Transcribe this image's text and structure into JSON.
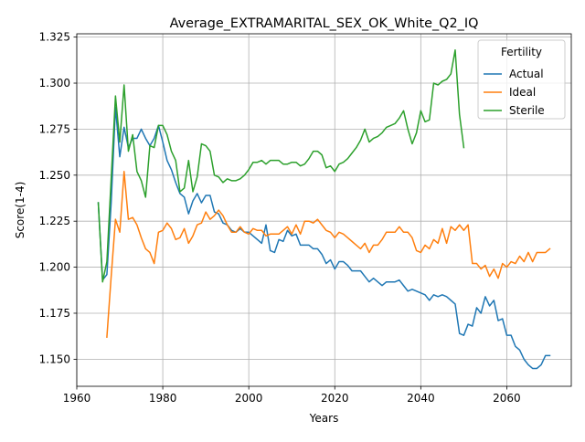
{
  "chart_data": {
    "type": "line",
    "title": "Average_EXTRAMARITAL_SEX_OK_White_Q2_IQ",
    "xlabel": "Years",
    "ylabel": "Score(1-4)",
    "xlim": [
      1960,
      2075
    ],
    "ylim": [
      1.1353,
      1.3268
    ],
    "xticks": [
      1960,
      1980,
      2000,
      2020,
      2040,
      2060
    ],
    "yticks": [
      1.15,
      1.175,
      1.2,
      1.225,
      1.25,
      1.275,
      1.3,
      1.325
    ],
    "grid": true,
    "legend": {
      "title": "Fertility",
      "placement": "top-right"
    },
    "series": [
      {
        "name": "Actual",
        "color": "#1f77b4",
        "x": [
          1965,
          1966,
          1967,
          1968,
          1969,
          1970,
          1971,
          1972,
          1973,
          1974,
          1975,
          1976,
          1977,
          1978,
          1979,
          1980,
          1981,
          1982,
          1983,
          1984,
          1985,
          1986,
          1987,
          1988,
          1989,
          1990,
          1991,
          1992,
          1993,
          1994,
          1995,
          1996,
          1997,
          1998,
          1999,
          2000,
          2001,
          2002,
          2003,
          2004,
          2005,
          2006,
          2007,
          2008,
          2009,
          2010,
          2011,
          2012,
          2013,
          2014,
          2015,
          2016,
          2017,
          2018,
          2019,
          2020,
          2021,
          2022,
          2023,
          2024,
          2025,
          2026,
          2027,
          2028,
          2029,
          2030,
          2031,
          2032,
          2033,
          2034,
          2035,
          2036,
          2037,
          2038,
          2039,
          2040,
          2041,
          2042,
          2043,
          2044,
          2045,
          2046,
          2047,
          2048,
          2049,
          2050,
          2051,
          2052,
          2053,
          2054,
          2055,
          2056,
          2057,
          2058,
          2059,
          2060,
          2061,
          2062,
          2063,
          2064,
          2065,
          2066,
          2067,
          2068,
          2069,
          2070
        ],
        "values": [
          1.235,
          1.193,
          1.196,
          1.235,
          1.287,
          1.26,
          1.276,
          1.265,
          1.27,
          1.27,
          1.275,
          1.27,
          1.266,
          1.27,
          1.277,
          1.268,
          1.258,
          1.253,
          1.246,
          1.24,
          1.238,
          1.229,
          1.236,
          1.24,
          1.235,
          1.239,
          1.239,
          1.23,
          1.229,
          1.224,
          1.223,
          1.22,
          1.219,
          1.221,
          1.219,
          1.219,
          1.217,
          1.215,
          1.213,
          1.223,
          1.209,
          1.208,
          1.215,
          1.214,
          1.22,
          1.217,
          1.218,
          1.212,
          1.212,
          1.212,
          1.21,
          1.21,
          1.207,
          1.202,
          1.204,
          1.199,
          1.203,
          1.203,
          1.201,
          1.198,
          1.198,
          1.198,
          1.195,
          1.192,
          1.194,
          1.192,
          1.19,
          1.192,
          1.192,
          1.192,
          1.193,
          1.19,
          1.187,
          1.188,
          1.187,
          1.186,
          1.185,
          1.182,
          1.185,
          1.184,
          1.185,
          1.184,
          1.182,
          1.18,
          1.164,
          1.163,
          1.169,
          1.168,
          1.178,
          1.175,
          1.184,
          1.179,
          1.182,
          1.171,
          1.172,
          1.163,
          1.163,
          1.157,
          1.155,
          1.15,
          1.147,
          1.145,
          1.145,
          1.147,
          1.152,
          1.152
        ]
      },
      {
        "name": "Ideal",
        "color": "#ff7f0e",
        "x": [
          1967,
          1968,
          1969,
          1970,
          1971,
          1972,
          1973,
          1974,
          1975,
          1976,
          1977,
          1978,
          1979,
          1980,
          1981,
          1982,
          1983,
          1984,
          1985,
          1986,
          1987,
          1988,
          1989,
          1990,
          1991,
          1992,
          1993,
          1994,
          1995,
          1996,
          1997,
          1998,
          1999,
          2000,
          2001,
          2002,
          2003,
          2004,
          2005,
          2006,
          2007,
          2008,
          2009,
          2010,
          2011,
          2012,
          2013,
          2014,
          2015,
          2016,
          2017,
          2018,
          2019,
          2020,
          2021,
          2022,
          2023,
          2024,
          2025,
          2026,
          2027,
          2028,
          2029,
          2030,
          2031,
          2032,
          2033,
          2034,
          2035,
          2036,
          2037,
          2038,
          2039,
          2040,
          2041,
          2042,
          2043,
          2044,
          2045,
          2046,
          2047,
          2048,
          2049,
          2050,
          2051,
          2052,
          2053,
          2054,
          2055,
          2056,
          2057,
          2058,
          2059,
          2060,
          2061,
          2062,
          2063,
          2064,
          2065,
          2066,
          2067,
          2068,
          2069,
          2070
        ],
        "values": [
          1.162,
          1.195,
          1.226,
          1.219,
          1.252,
          1.226,
          1.227,
          1.223,
          1.216,
          1.21,
          1.208,
          1.202,
          1.219,
          1.22,
          1.224,
          1.221,
          1.215,
          1.216,
          1.221,
          1.213,
          1.217,
          1.223,
          1.224,
          1.23,
          1.226,
          1.228,
          1.231,
          1.228,
          1.223,
          1.219,
          1.219,
          1.222,
          1.219,
          1.218,
          1.221,
          1.22,
          1.22,
          1.217,
          1.218,
          1.218,
          1.218,
          1.22,
          1.222,
          1.218,
          1.223,
          1.218,
          1.225,
          1.225,
          1.224,
          1.226,
          1.223,
          1.22,
          1.219,
          1.216,
          1.219,
          1.218,
          1.216,
          1.214,
          1.212,
          1.21,
          1.213,
          1.208,
          1.212,
          1.212,
          1.215,
          1.219,
          1.219,
          1.219,
          1.222,
          1.219,
          1.219,
          1.216,
          1.209,
          1.208,
          1.212,
          1.21,
          1.215,
          1.213,
          1.221,
          1.213,
          1.222,
          1.22,
          1.223,
          1.22,
          1.223,
          1.202,
          1.202,
          1.199,
          1.201,
          1.195,
          1.199,
          1.194,
          1.202,
          1.2,
          1.203,
          1.202,
          1.206,
          1.203,
          1.208,
          1.203,
          1.208,
          1.208,
          1.208,
          1.21
        ]
      },
      {
        "name": "Sterile",
        "color": "#2ca02c",
        "x": [
          1965,
          1966,
          1967,
          1968,
          1969,
          1970,
          1971,
          1972,
          1973,
          1974,
          1975,
          1976,
          1977,
          1978,
          1979,
          1980,
          1981,
          1982,
          1983,
          1984,
          1985,
          1986,
          1987,
          1988,
          1989,
          1990,
          1991,
          1992,
          1993,
          1994,
          1995,
          1996,
          1997,
          1998,
          1999,
          2000,
          2001,
          2002,
          2003,
          2004,
          2005,
          2006,
          2007,
          2008,
          2009,
          2010,
          2011,
          2012,
          2013,
          2014,
          2015,
          2016,
          2017,
          2018,
          2019,
          2020,
          2021,
          2022,
          2023,
          2024,
          2025,
          2026,
          2027,
          2028,
          2029,
          2030,
          2031,
          2032,
          2033,
          2034,
          2035,
          2036,
          2037,
          2038,
          2039,
          2040,
          2041,
          2042,
          2043,
          2044,
          2045,
          2046,
          2047,
          2048,
          2049,
          2050
        ],
        "values": [
          1.235,
          1.192,
          1.203,
          1.248,
          1.293,
          1.268,
          1.299,
          1.263,
          1.272,
          1.252,
          1.247,
          1.238,
          1.266,
          1.265,
          1.277,
          1.277,
          1.272,
          1.263,
          1.258,
          1.241,
          1.243,
          1.258,
          1.241,
          1.249,
          1.267,
          1.266,
          1.263,
          1.25,
          1.249,
          1.246,
          1.248,
          1.247,
          1.247,
          1.248,
          1.25,
          1.253,
          1.257,
          1.257,
          1.258,
          1.256,
          1.258,
          1.258,
          1.258,
          1.256,
          1.256,
          1.257,
          1.257,
          1.255,
          1.256,
          1.259,
          1.263,
          1.263,
          1.261,
          1.254,
          1.255,
          1.252,
          1.256,
          1.257,
          1.259,
          1.262,
          1.265,
          1.269,
          1.275,
          1.268,
          1.27,
          1.271,
          1.273,
          1.276,
          1.277,
          1.278,
          1.281,
          1.285,
          1.275,
          1.267,
          1.273,
          1.285,
          1.279,
          1.28,
          1.3,
          1.299,
          1.301,
          1.302,
          1.305,
          1.318,
          1.283,
          1.265
        ]
      }
    ]
  }
}
